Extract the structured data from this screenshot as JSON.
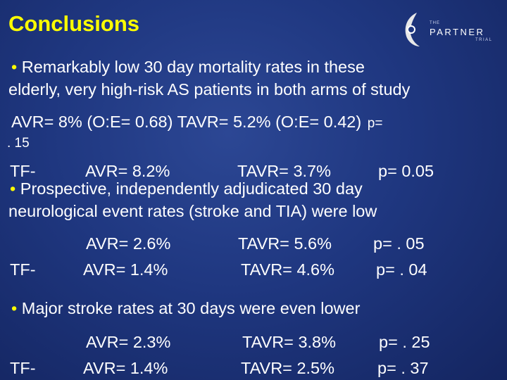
{
  "title": "Conclusions",
  "logo": {
    "the": "THE",
    "partner": "PARTNER",
    "trial": "TRIAL"
  },
  "bullet_char": "•",
  "colors": {
    "title": "#ffff00",
    "bullet": "#ffff00",
    "text": "#ffffff",
    "background": "#1f3780"
  },
  "mortality": {
    "bullet_line1": "Remarkably low 30 day mortality rates in these",
    "bullet_line2": "elderly, very high-risk AS patients in both arms of study",
    "overall_line": "AVR= 8% (O:E= 0.68)  TAVR=  5.2% (O:E= 0.42)",
    "overall_p_label": "p=",
    "overall_p_value": ". 15",
    "tf_prefix": "TF-",
    "tf_avr": "AVR= 8.2%",
    "tf_tavr": "TAVR=  3.7%",
    "tf_p": "p= 0.05"
  },
  "neuro": {
    "bullet_line1": "Prospective, independently adjudicated 30 day",
    "bullet_line2": "neurological event rates (stroke and TIA) were low",
    "row1": {
      "avr": "AVR= 2.6%",
      "tavr": "TAVR= 5.6%",
      "p": "p= . 05"
    },
    "row2": {
      "prefix": "TF-",
      "avr": "AVR= 1.4%",
      "tavr": "TAVR= 4.6%",
      "p": "p= . 04"
    }
  },
  "stroke": {
    "bullet_line1": "Major stroke rates at 30 days were even lower",
    "row1": {
      "avr": "AVR= 2.3%",
      "tavr": "TAVR= 3.8%",
      "p": "p= . 25"
    },
    "row2": {
      "prefix": "TF-",
      "avr": "AVR= 1.4%",
      "tavr": "TAVR= 2.5%",
      "p": "p= . 37"
    }
  }
}
